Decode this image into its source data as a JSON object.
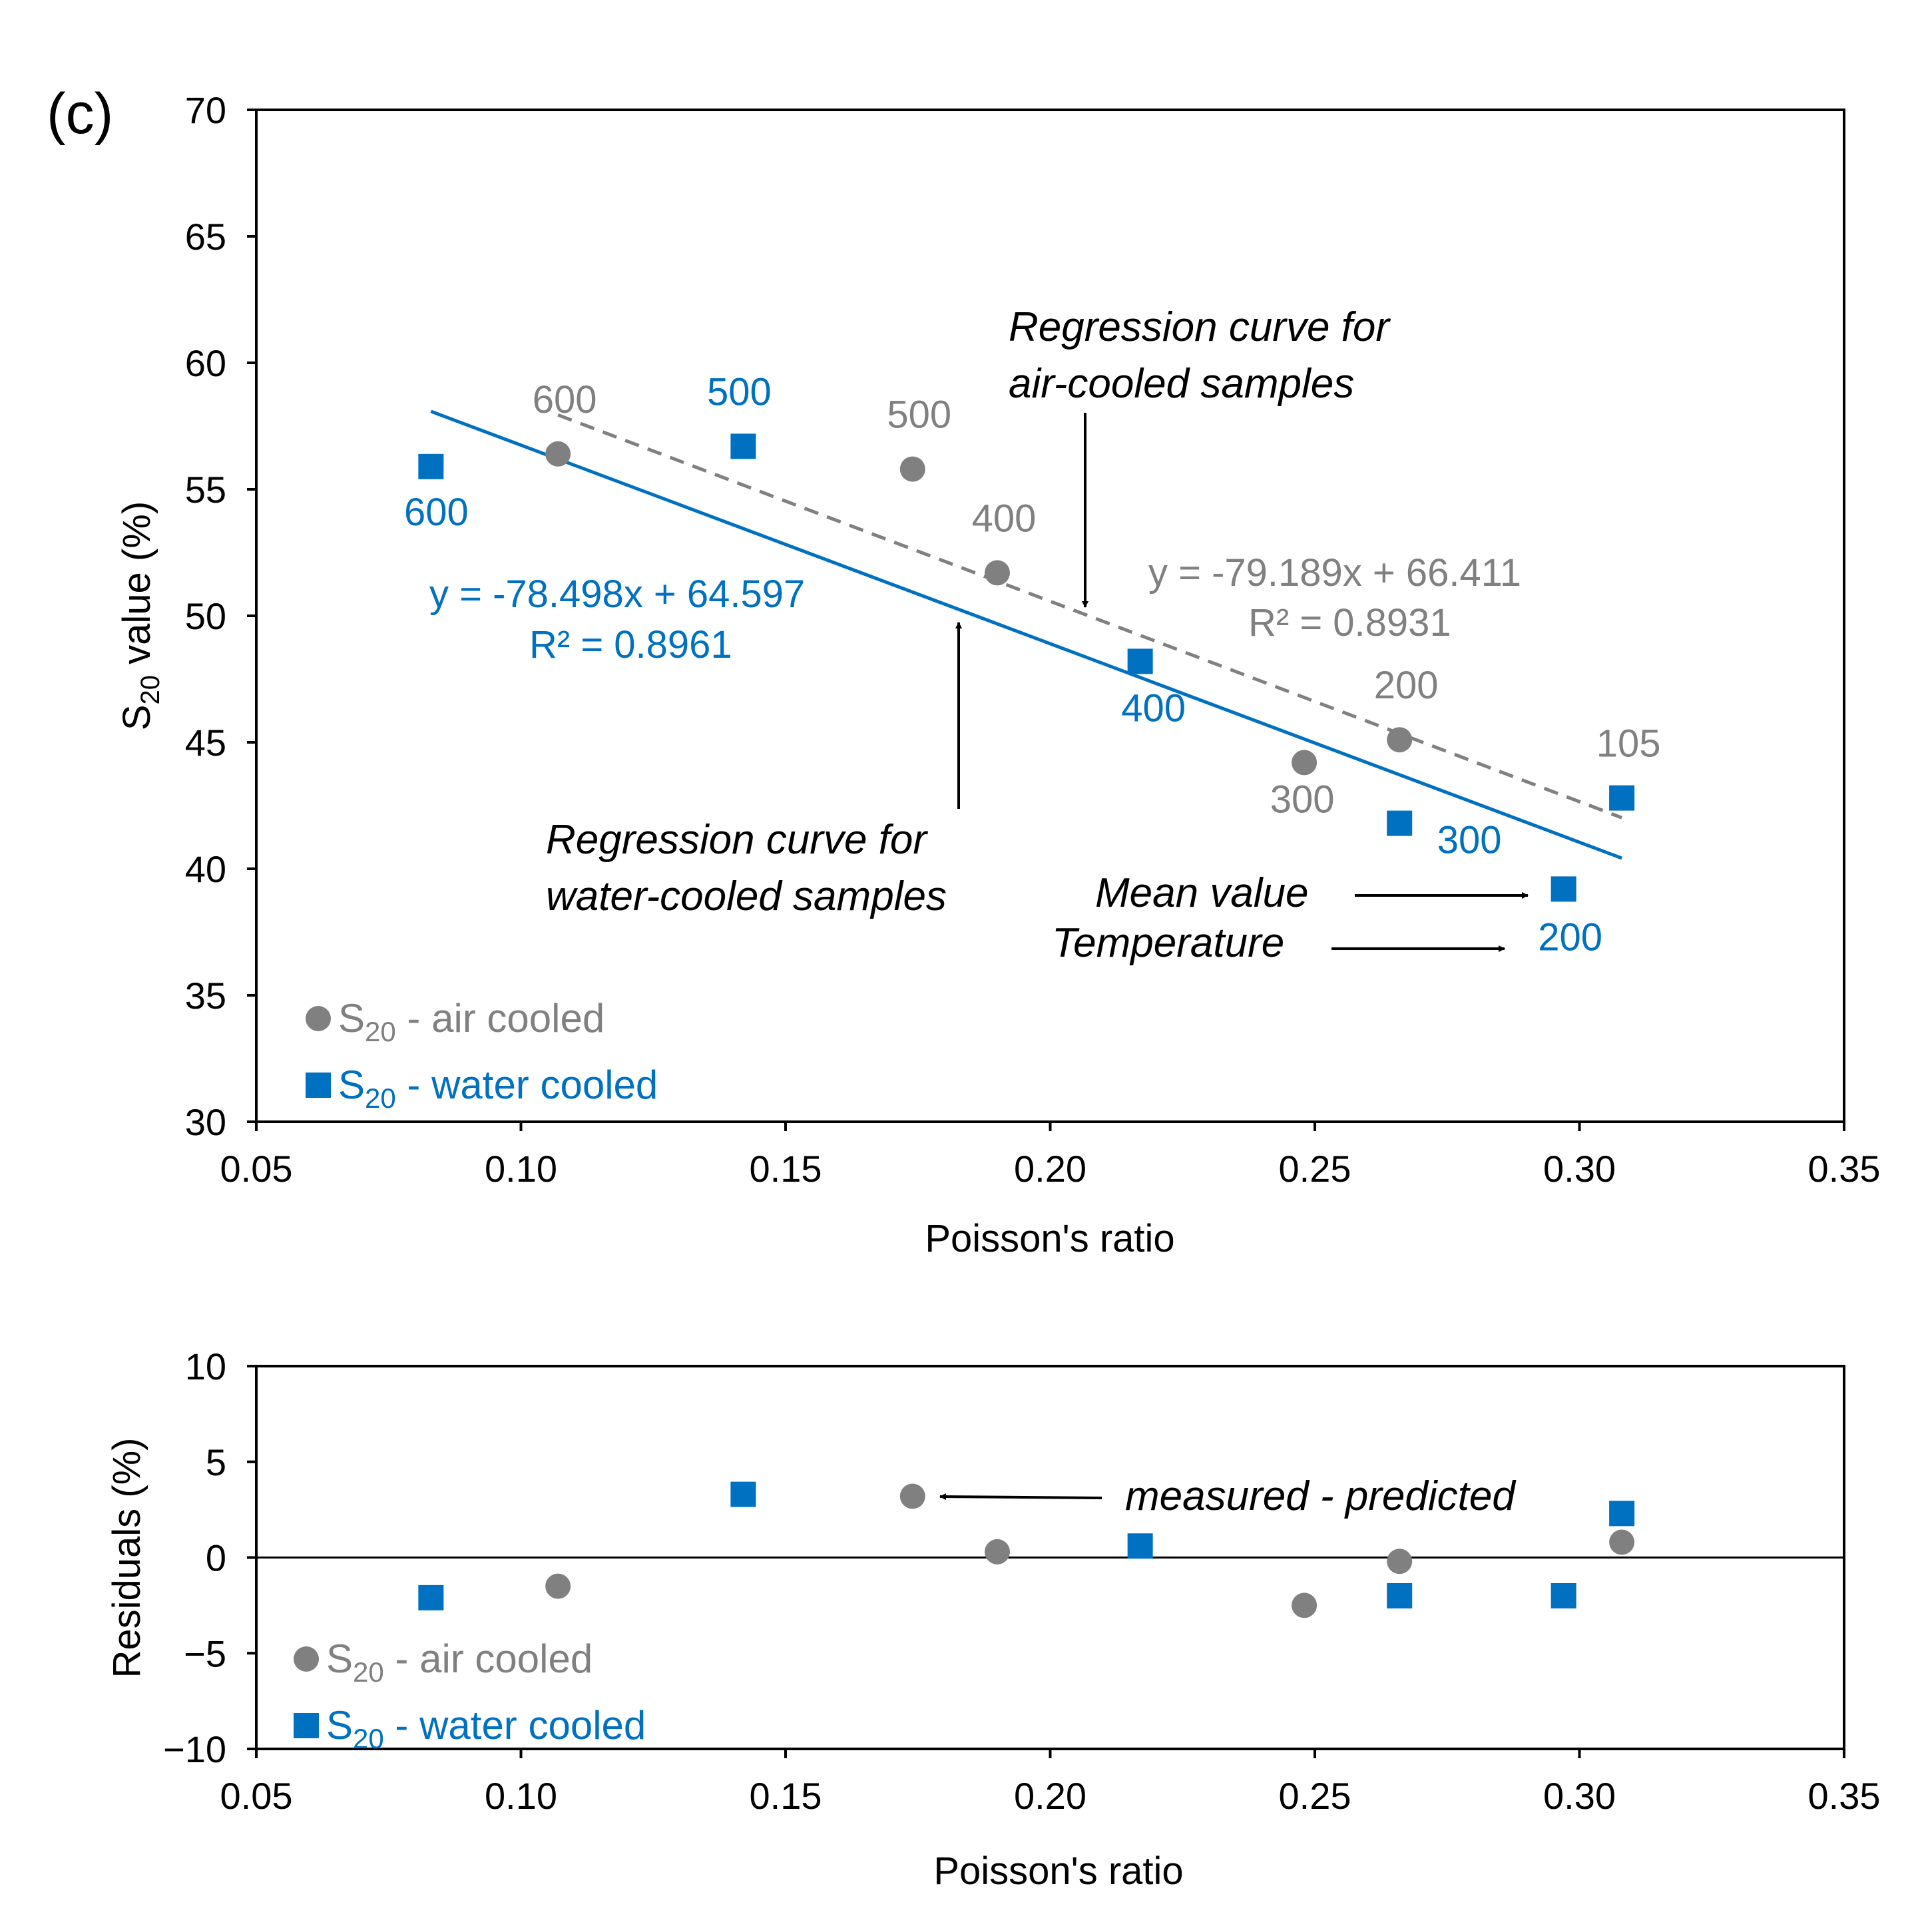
{
  "panel_label": "(c)",
  "colors": {
    "air": "#808080",
    "water": "#0070C0",
    "axis": "#000000",
    "text": "#000000"
  },
  "chart_data": [
    {
      "type": "scatter",
      "xlabel": "Poisson's ratio",
      "ylabel_main": "S",
      "ylabel_sub": "20",
      "ylabel_rest": " value (%)",
      "xlim": [
        0.05,
        0.35
      ],
      "ylim": [
        30,
        70
      ],
      "xticks": [
        0.05,
        0.1,
        0.15,
        0.2,
        0.25,
        0.3,
        0.35
      ],
      "xtick_labels": [
        "0.05",
        "0.10",
        "0.15",
        "0.20",
        "0.25",
        "0.30",
        "0.35"
      ],
      "yticks": [
        30,
        35,
        40,
        45,
        50,
        55,
        60,
        65,
        70
      ],
      "ytick_labels": [
        "30",
        "35",
        "40",
        "45",
        "50",
        "55",
        "60",
        "65",
        "70"
      ],
      "series": [
        {
          "name": "air",
          "legend_main": "S",
          "legend_sub": "20",
          "legend_rest": " - air cooled",
          "marker": "circle",
          "x": [
            0.107,
            0.174,
            0.19,
            0.248,
            0.266,
            0.308
          ],
          "y": [
            56.4,
            55.8,
            51.7,
            44.2,
            45.1,
            42.8
          ],
          "labels": [
            "600",
            "500",
            "400",
            "300",
            "200",
            "105"
          ]
        },
        {
          "name": "water",
          "legend_main": "S",
          "legend_sub": "20",
          "legend_rest": " - water cooled",
          "marker": "square",
          "x": [
            0.083,
            0.142,
            0.217,
            0.266,
            0.297,
            0.308
          ],
          "y": [
            55.9,
            56.7,
            48.2,
            41.8,
            39.2,
            42.8
          ],
          "labels": [
            "600",
            "500",
            "400",
            "300",
            "200",
            ""
          ]
        }
      ],
      "regression": [
        {
          "name": "air",
          "style": "dashed",
          "x": [
            0.107,
            0.308
          ],
          "y": [
            57.94,
            42.02
          ],
          "equation": "y = -79.189x + 66.411",
          "r2": "R² = 0.8931"
        },
        {
          "name": "water",
          "style": "solid",
          "x": [
            0.083,
            0.308
          ],
          "y": [
            58.08,
            40.42
          ],
          "equation": "y = -78.498x + 64.597",
          "r2": "R² = 0.8961"
        }
      ],
      "annotations": [
        "Regression curve for",
        "air-cooled samples",
        "Regression curve for",
        "water-cooled samples",
        "Mean value",
        "Temperature"
      ]
    },
    {
      "type": "scatter",
      "xlabel": "Poisson's ratio",
      "ylabel": "Residuals (%)",
      "xlim": [
        0.05,
        0.35
      ],
      "ylim": [
        -10,
        10
      ],
      "xticks": [
        0.05,
        0.1,
        0.15,
        0.2,
        0.25,
        0.3,
        0.35
      ],
      "xtick_labels": [
        "0.05",
        "0.10",
        "0.15",
        "0.20",
        "0.25",
        "0.30",
        "0.35"
      ],
      "yticks": [
        -10,
        -5,
        0,
        5,
        10
      ],
      "ytick_labels": [
        "−10",
        "−5",
        "0",
        "5",
        "10"
      ],
      "series": [
        {
          "name": "air",
          "legend_main": "S",
          "legend_sub": "20",
          "legend_rest": " - air cooled",
          "marker": "circle",
          "x": [
            0.107,
            0.174,
            0.19,
            0.248,
            0.266,
            0.308
          ],
          "y": [
            -1.5,
            3.2,
            0.3,
            -2.5,
            -0.2,
            0.8
          ]
        },
        {
          "name": "water",
          "legend_main": "S",
          "legend_sub": "20",
          "legend_rest": " - water cooled",
          "marker": "square",
          "x": [
            0.083,
            0.142,
            0.217,
            0.266,
            0.297,
            0.308
          ],
          "y": [
            -2.1,
            3.3,
            0.6,
            -2.0,
            -2.0,
            2.3
          ]
        }
      ],
      "annotations": [
        "measured - predicted"
      ]
    }
  ]
}
